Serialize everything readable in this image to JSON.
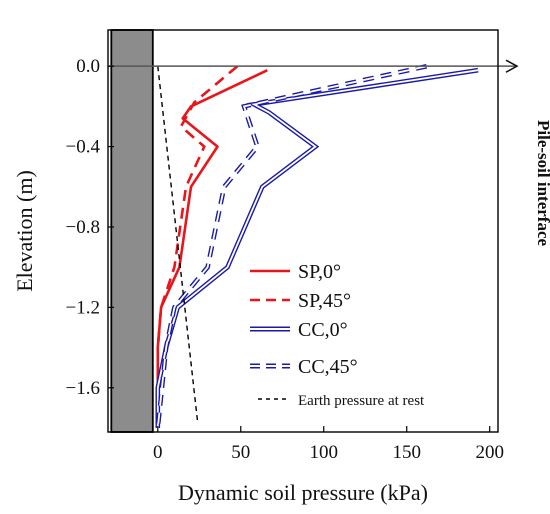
{
  "chart_data": {
    "type": "line",
    "xlabel": "Dynamic soil pressure (kPa)",
    "ylabel": "Elevation (m)",
    "xlim": [
      -30,
      205
    ],
    "ylim": [
      -1.82,
      0.18
    ],
    "xticks": [
      0,
      50,
      100,
      150,
      200
    ],
    "yticks": [
      0.0,
      -0.4,
      -0.8,
      -1.2,
      -1.6
    ],
    "xtick_labels": [
      "0",
      "50",
      "100",
      "150",
      "200"
    ],
    "ytick_labels": [
      "0.0",
      "−0.4",
      "−0.8",
      "−1.2",
      "−1.6"
    ],
    "annotation": "Pile-soil interface",
    "pile": {
      "x_range": [
        -28,
        -3
      ],
      "y_range": [
        -1.82,
        0.18
      ],
      "color": "#8c8c8c"
    },
    "series": [
      {
        "name": "SP,0°",
        "style": "solid",
        "color": "#e8161b",
        "x": [
          66,
          20,
          15,
          36,
          20,
          13,
          2,
          0,
          0,
          0
        ],
        "y": [
          -0.02,
          -0.2,
          -0.26,
          -0.4,
          -0.6,
          -1.0,
          -1.2,
          -1.4,
          -1.6,
          -1.8
        ]
      },
      {
        "name": "SP,45°",
        "style": "dashed",
        "color": "#e8161b",
        "x": [
          48,
          22,
          14,
          28,
          17,
          10,
          2,
          0,
          0
        ],
        "y": [
          0.0,
          -0.18,
          -0.3,
          -0.4,
          -0.6,
          -1.0,
          -1.2,
          -1.4,
          -1.8
        ]
      },
      {
        "name": "CC,0°",
        "style": "double",
        "color": "#1a1aa6",
        "x": [
          193,
          58,
          67,
          95,
          63,
          42,
          12,
          5,
          0,
          0
        ],
        "y": [
          -0.02,
          -0.19,
          -0.23,
          -0.4,
          -0.6,
          -1.0,
          -1.2,
          -1.4,
          -1.6,
          -1.8
        ]
      },
      {
        "name": "CC,45°",
        "style": "double-dashed",
        "color": "#1a1aa6",
        "x": [
          162,
          52,
          60,
          40,
          30,
          10,
          5,
          0
        ],
        "y": [
          0.0,
          -0.2,
          -0.4,
          -0.6,
          -1.0,
          -1.2,
          -1.4,
          -1.8
        ]
      },
      {
        "name": "Earth pressure at rest",
        "style": "dotted",
        "color": "#000000",
        "x": [
          0,
          24
        ],
        "y": [
          0.0,
          -1.77
        ]
      }
    ],
    "grid": false,
    "legend_position": "bottom-right"
  }
}
